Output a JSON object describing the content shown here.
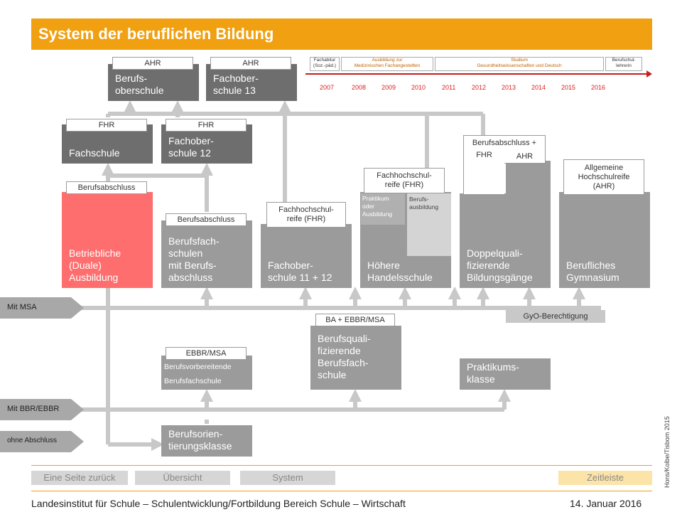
{
  "title": "System der beruflichen Bildung",
  "timeline": {
    "labels": [
      {
        "text": "Fachabitur\n(Soz.-päd.)"
      },
      {
        "text": "Ausbildung zur\nMedizinischen Fachangestellten"
      },
      {
        "text": "Studium\nGesundheitswissenschaften und Deutsch"
      },
      {
        "text": "Berufschul-\nlehrerin"
      }
    ],
    "years": [
      "2007",
      "2008",
      "2009",
      "2010",
      "2011",
      "2012",
      "2013",
      "2014",
      "2015",
      "2016"
    ]
  },
  "boxes": {
    "berufsoberschule": "Berufs-\noberschule",
    "fachoberschule13": "Fachober-\nschule 13",
    "fachschule": "Fachschule",
    "fachoberschule12": "Fachober-\nschule 12",
    "betriebliche": "Betriebliche\n(Duale)\nAusbildung",
    "berufsfachschulen": "Berufsfach-\nschulen\nmit Berufs-\nabschluss",
    "fachoberschule1112": "Fachober-\nschule 11 + 12",
    "hoehere": "Höhere\nHandelsschule",
    "praktikum_ausb": "Praktikum\noder\nAusbildung",
    "berufsausbildung": "Berufs-\nausbildung",
    "doppelquali": "Doppelquali-\nfizierende\nBildungsgänge",
    "gymnasium": "Berufliches\nGymnasium",
    "berufsquali": "Berufsquali-\nfizierende\nBerufsfach-\nschule",
    "praktikumsklasse": "Praktikums-\nklasse",
    "berufsvorbereitende": "Berufsvorbereitende\nBerufsfachschule",
    "berufsorientierung": "Berufsorien-\ntierungsklasse"
  },
  "tags": {
    "ahr1": "AHR",
    "ahr2": "AHR",
    "fhr1": "FHR",
    "fhr2": "FHR",
    "berufsabschluss1": "Berufsabschluss",
    "berufsabschluss2": "Berufsabschluss",
    "fhr_fos": "Fachhochschul-\nreife (FHR)",
    "fhr_hhs": "Fachhochschul-\nreife (FHR)",
    "berufsabschluss_plus": "Berufsabschluss +",
    "fhr_doppel": "FHR",
    "ahr_doppel": "AHR",
    "allgemeine": "Allgemeine\nHochschulreife\n(AHR)",
    "ba_ebbr": "BA + EBBR/MSA",
    "ebbr_msa": "EBBR/MSA",
    "gyo": "GyO-Berechtigung"
  },
  "entries": {
    "msa": "Mit MSA",
    "bbr": "Mit BBR/EBBR",
    "ohne": "ohne Abschluss"
  },
  "nav": {
    "back": "Eine Seite zurück",
    "overview": "Übersicht",
    "system": "System",
    "timeline": "Zeitleiste"
  },
  "footer": {
    "institute": "Landesinstitut für Schule – Schulentwicklung/Fortbildung Bereich Schule – Wirtschaft",
    "date": "14. Januar 2016",
    "credit": "Hons/Kolbe/Tisbom 2015"
  },
  "colors": {
    "accent": "#f0a010",
    "red": "#ff6e6e",
    "gray_dark": "#6e6e6e",
    "gray_mid": "#9b9b9b"
  }
}
